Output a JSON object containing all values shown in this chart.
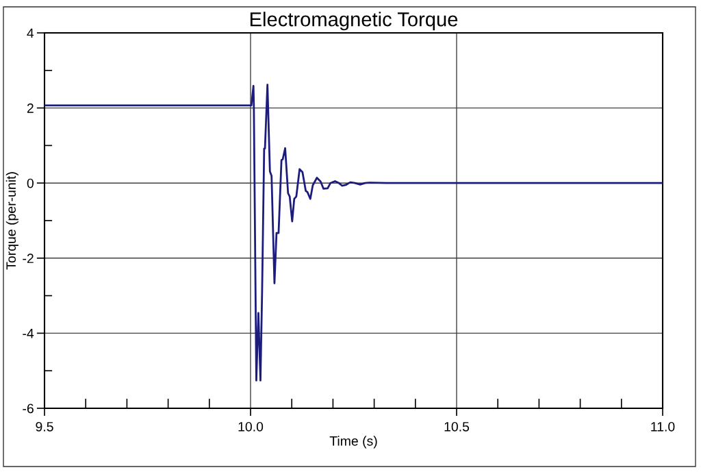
{
  "chart_data": {
    "type": "line",
    "title": "Electromagnetic Torque",
    "xlabel": "Time (s)",
    "ylabel": "Torque (per-unit)",
    "x": [
      9.5,
      10.002,
      10.007,
      10.008,
      10.014,
      10.019,
      10.024,
      10.028,
      10.033,
      10.035,
      10.041,
      10.047,
      10.051,
      10.058,
      10.063,
      10.068,
      10.075,
      10.078,
      10.084,
      10.091,
      10.095,
      10.101,
      10.106,
      10.111,
      10.119,
      10.126,
      10.134,
      10.138,
      10.145,
      10.151,
      10.161,
      10.17,
      10.177,
      10.187,
      10.194,
      10.205,
      10.213,
      10.222,
      10.231,
      10.242,
      10.253,
      10.266,
      10.278,
      10.289,
      10.33,
      11.0
    ],
    "series": [
      {
        "color": "#1c1c7c",
        "values": [
          2.07,
          2.07,
          2.59,
          2.07,
          -5.26,
          -3.46,
          -5.26,
          -2.91,
          0.92,
          0.92,
          2.62,
          0.31,
          0.19,
          -2.67,
          -1.33,
          -1.33,
          0.61,
          0.63,
          0.93,
          -0.27,
          -0.36,
          -1.02,
          -0.42,
          -0.36,
          0.37,
          0.29,
          -0.21,
          -0.24,
          -0.42,
          -0.06,
          0.14,
          0.04,
          -0.15,
          -0.14,
          0.0,
          0.05,
          0.01,
          -0.07,
          -0.05,
          0.02,
          0.0,
          -0.04,
          0.0,
          0.01,
          0.0,
          0.0
        ]
      }
    ],
    "xlim": [
      9.5,
      11.0
    ],
    "xticks": [
      {
        "value": 9.5,
        "label": "9.5"
      },
      {
        "value": 9.6,
        "label": null
      },
      {
        "value": 9.7,
        "label": null
      },
      {
        "value": 9.8,
        "label": null
      },
      {
        "value": 9.9,
        "label": null
      },
      {
        "value": 10.0,
        "label": "10.0"
      },
      {
        "value": 10.1,
        "label": null
      },
      {
        "value": 10.2,
        "label": null
      },
      {
        "value": 10.3,
        "label": null
      },
      {
        "value": 10.4,
        "label": null
      },
      {
        "value": 10.5,
        "label": "10.5"
      },
      {
        "value": 10.6,
        "label": null
      },
      {
        "value": 10.7,
        "label": null
      },
      {
        "value": 10.8,
        "label": null
      },
      {
        "value": 10.9,
        "label": null
      },
      {
        "value": 11.0,
        "label": "11.0"
      }
    ],
    "ylim": [
      -6,
      4
    ],
    "yticks": [
      -6,
      {
        "value": -5,
        "label": null
      },
      -4,
      {
        "value": -3,
        "label": null
      },
      -2,
      {
        "value": -1,
        "label": null
      },
      0,
      {
        "value": 1,
        "label": null
      },
      2,
      {
        "value": 3,
        "label": null
      },
      4
    ],
    "grid": true,
    "marker": "none",
    "line_style": "solid"
  }
}
